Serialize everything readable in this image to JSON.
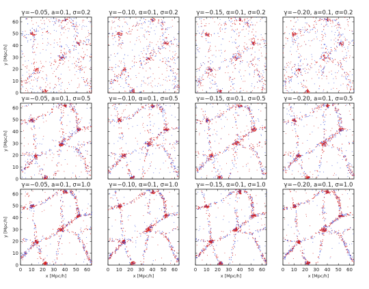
{
  "figure": {
    "rows": 3,
    "columns": 4,
    "x_axis_label": "x [Mpc/h]",
    "y_axis_label": "y [Mpc/h]",
    "x_ticks": [
      "0",
      "10",
      "20",
      "30",
      "40",
      "50",
      "60"
    ],
    "y_ticks": [
      "0",
      "10",
      "20",
      "30",
      "40",
      "50",
      "60"
    ],
    "axis_range": [
      0,
      64
    ],
    "particle_colors": {
      "red": "#d42020",
      "blue": "#3b4fd8"
    },
    "panel_titles": [
      "γ=−0.05, a=0.1, σ=0.2",
      "γ=−0.10, α=0.1, σ=0.2",
      "γ=−0.15, α=0.1, σ=0.2",
      "γ=−0.20, a=0.1, σ=0.2",
      "γ=−0.05, a=0.1, σ=0.5",
      "γ=−0.10, α=0.1, σ=0.5",
      "γ=−0.15, α=0.1, σ=0.5",
      "γ=−0.20, a=0.1, σ=0.5",
      "γ=−0.05, a=0.1, σ=1.0",
      "γ=−0.10, α=0.1, σ=1.0",
      "γ=−0.15, α=0.1, σ=1.0",
      "γ=−0.20, a=0.1, σ=1.0"
    ]
  }
}
